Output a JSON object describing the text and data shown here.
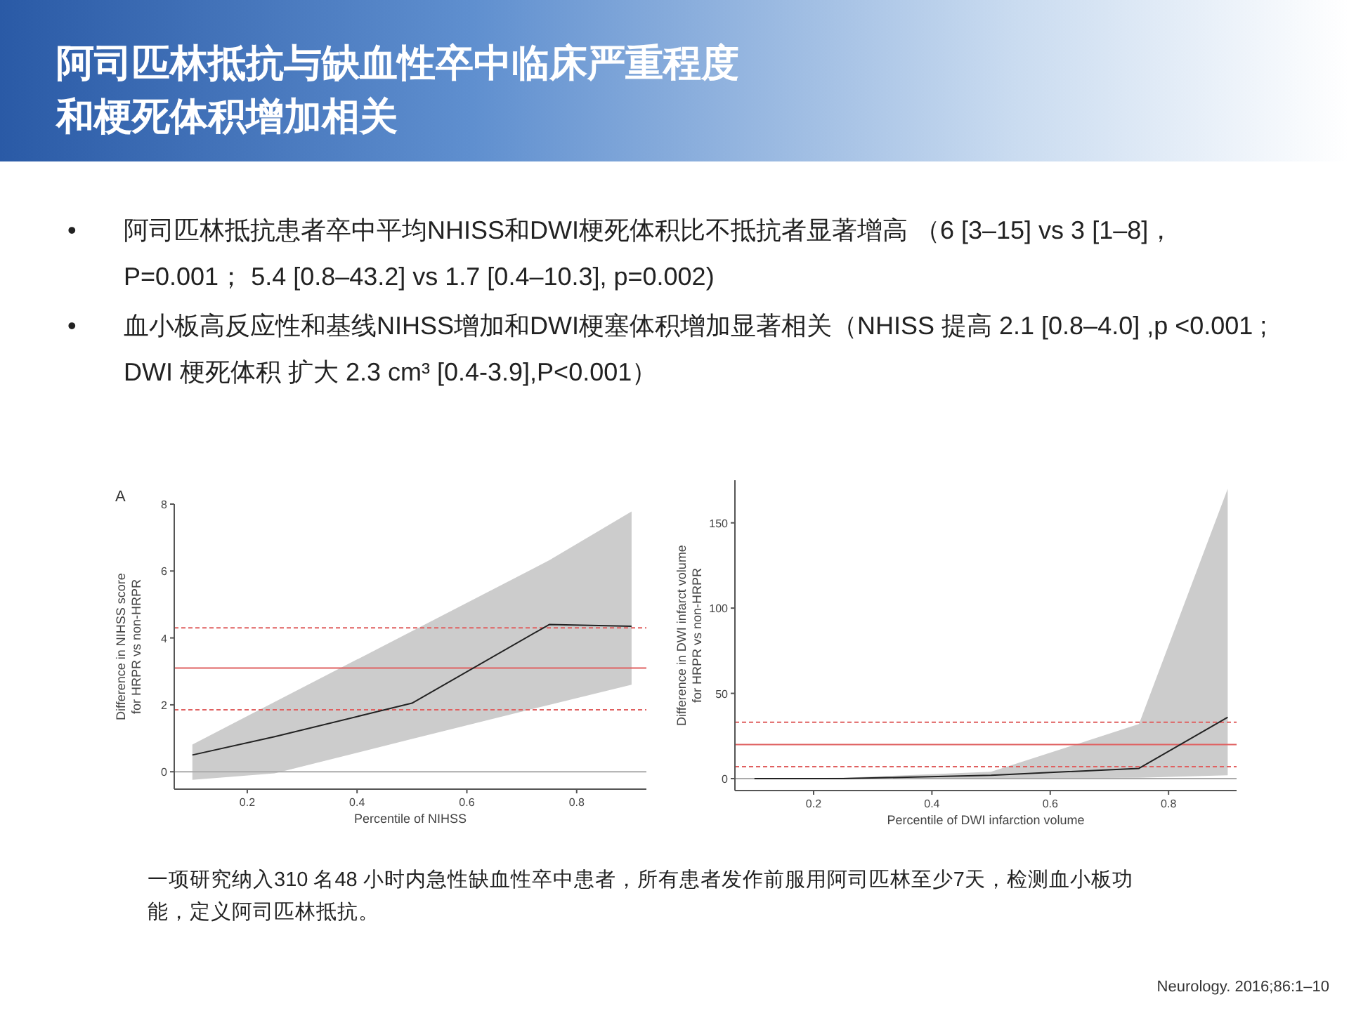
{
  "chart_data": [
    {
      "type": "other",
      "title": "阿司匹林抵抗与缺血性卒中临床严重程度和梗死体积增加相关",
      "annotations": [
        "• 阿司匹林抵抗患者卒中平均NHISS和DWI梗死体积比不抵抗者显著增高 （6 [3–15] vs 3 [1–8]， P=0.001； 5.4 [0.8–43.2] vs 1.7 [0.4–10.3], p=0.002)",
        "• 血小板高反应性和基线NIHSS增加和DWI梗塞体积增加显著相关（NHISS 提高 2.1 [0.8–4.0] ,p <0.001 ; DWI 梗死体积 扩大 2.3 cm³ [0.4-3.9],P<0.001）",
        "一项研究纳入310 名48 小时内急性缺血性卒中患者，所有患者发作前服用阿司匹林至少7天，检测血小板功能，定义阿司匹林抵抗。",
        "Neurology. 2016;86:1–10"
      ]
    },
    {
      "type": "line",
      "xlabel": "Percentile of NIHSS",
      "ylabel": "Difference in NIHSS score\nfor HRPR vs non-HRPR",
      "annotations": [
        "A"
      ],
      "xlim": [
        0.067,
        0.927
      ],
      "ylim": [
        -0.52,
        8
      ],
      "xticks": [
        0.2,
        0.4,
        0.6,
        0.8
      ],
      "yticks": [
        0,
        2,
        4,
        6,
        8
      ],
      "series": [
        {
          "color": "#222222",
          "x": [
            0.1,
            0.25,
            0.5,
            0.75,
            0.9
          ],
          "values": [
            0.5,
            1.05,
            2.05,
            4.4,
            4.35
          ],
          "lower": [
            -0.24,
            -0.05,
            0.98,
            2.0,
            2.6
          ],
          "upper": [
            0.81,
            2.09,
            4.2,
            6.32,
            7.78
          ]
        }
      ],
      "ref_lines": [
        {
          "axis": "y",
          "value": 0,
          "color": "#aaaaaa",
          "line_style": "solid"
        },
        {
          "axis": "y",
          "value": 3.1,
          "color": "#e06060",
          "line_style": "solid"
        },
        {
          "axis": "y",
          "value": 4.3,
          "color": "#e06060",
          "line_style": "dashed"
        },
        {
          "axis": "y",
          "value": 1.85,
          "color": "#e06060",
          "line_style": "dashed"
        }
      ]
    },
    {
      "type": "line",
      "xlabel": "Percentile of DWI infarction volume",
      "ylabel": "Difference in DWI infarct volume\nfor HRPR vs non-HRPR",
      "xlim": [
        0.067,
        0.915
      ],
      "ylim": [
        -7,
        175
      ],
      "xticks": [
        0.2,
        0.4,
        0.6,
        0.8
      ],
      "yticks": [
        0,
        50,
        100,
        150
      ],
      "series": [
        {
          "color": "#222222",
          "x": [
            0.1,
            0.25,
            0.5,
            0.75,
            0.9
          ],
          "values": [
            0,
            0,
            2,
            6,
            36
          ],
          "lower": [
            0,
            0,
            0,
            0.5,
            2
          ],
          "upper": [
            0,
            0.5,
            4,
            32,
            170
          ]
        }
      ],
      "ref_lines": [
        {
          "axis": "y",
          "value": 0,
          "color": "#aaaaaa",
          "line_style": "solid"
        },
        {
          "axis": "y",
          "value": 20,
          "color": "#e06060",
          "line_style": "solid"
        },
        {
          "axis": "y",
          "value": 33,
          "color": "#e06060",
          "line_style": "dashed"
        },
        {
          "axis": "y",
          "value": 7,
          "color": "#e06060",
          "line_style": "dashed"
        }
      ]
    }
  ]
}
